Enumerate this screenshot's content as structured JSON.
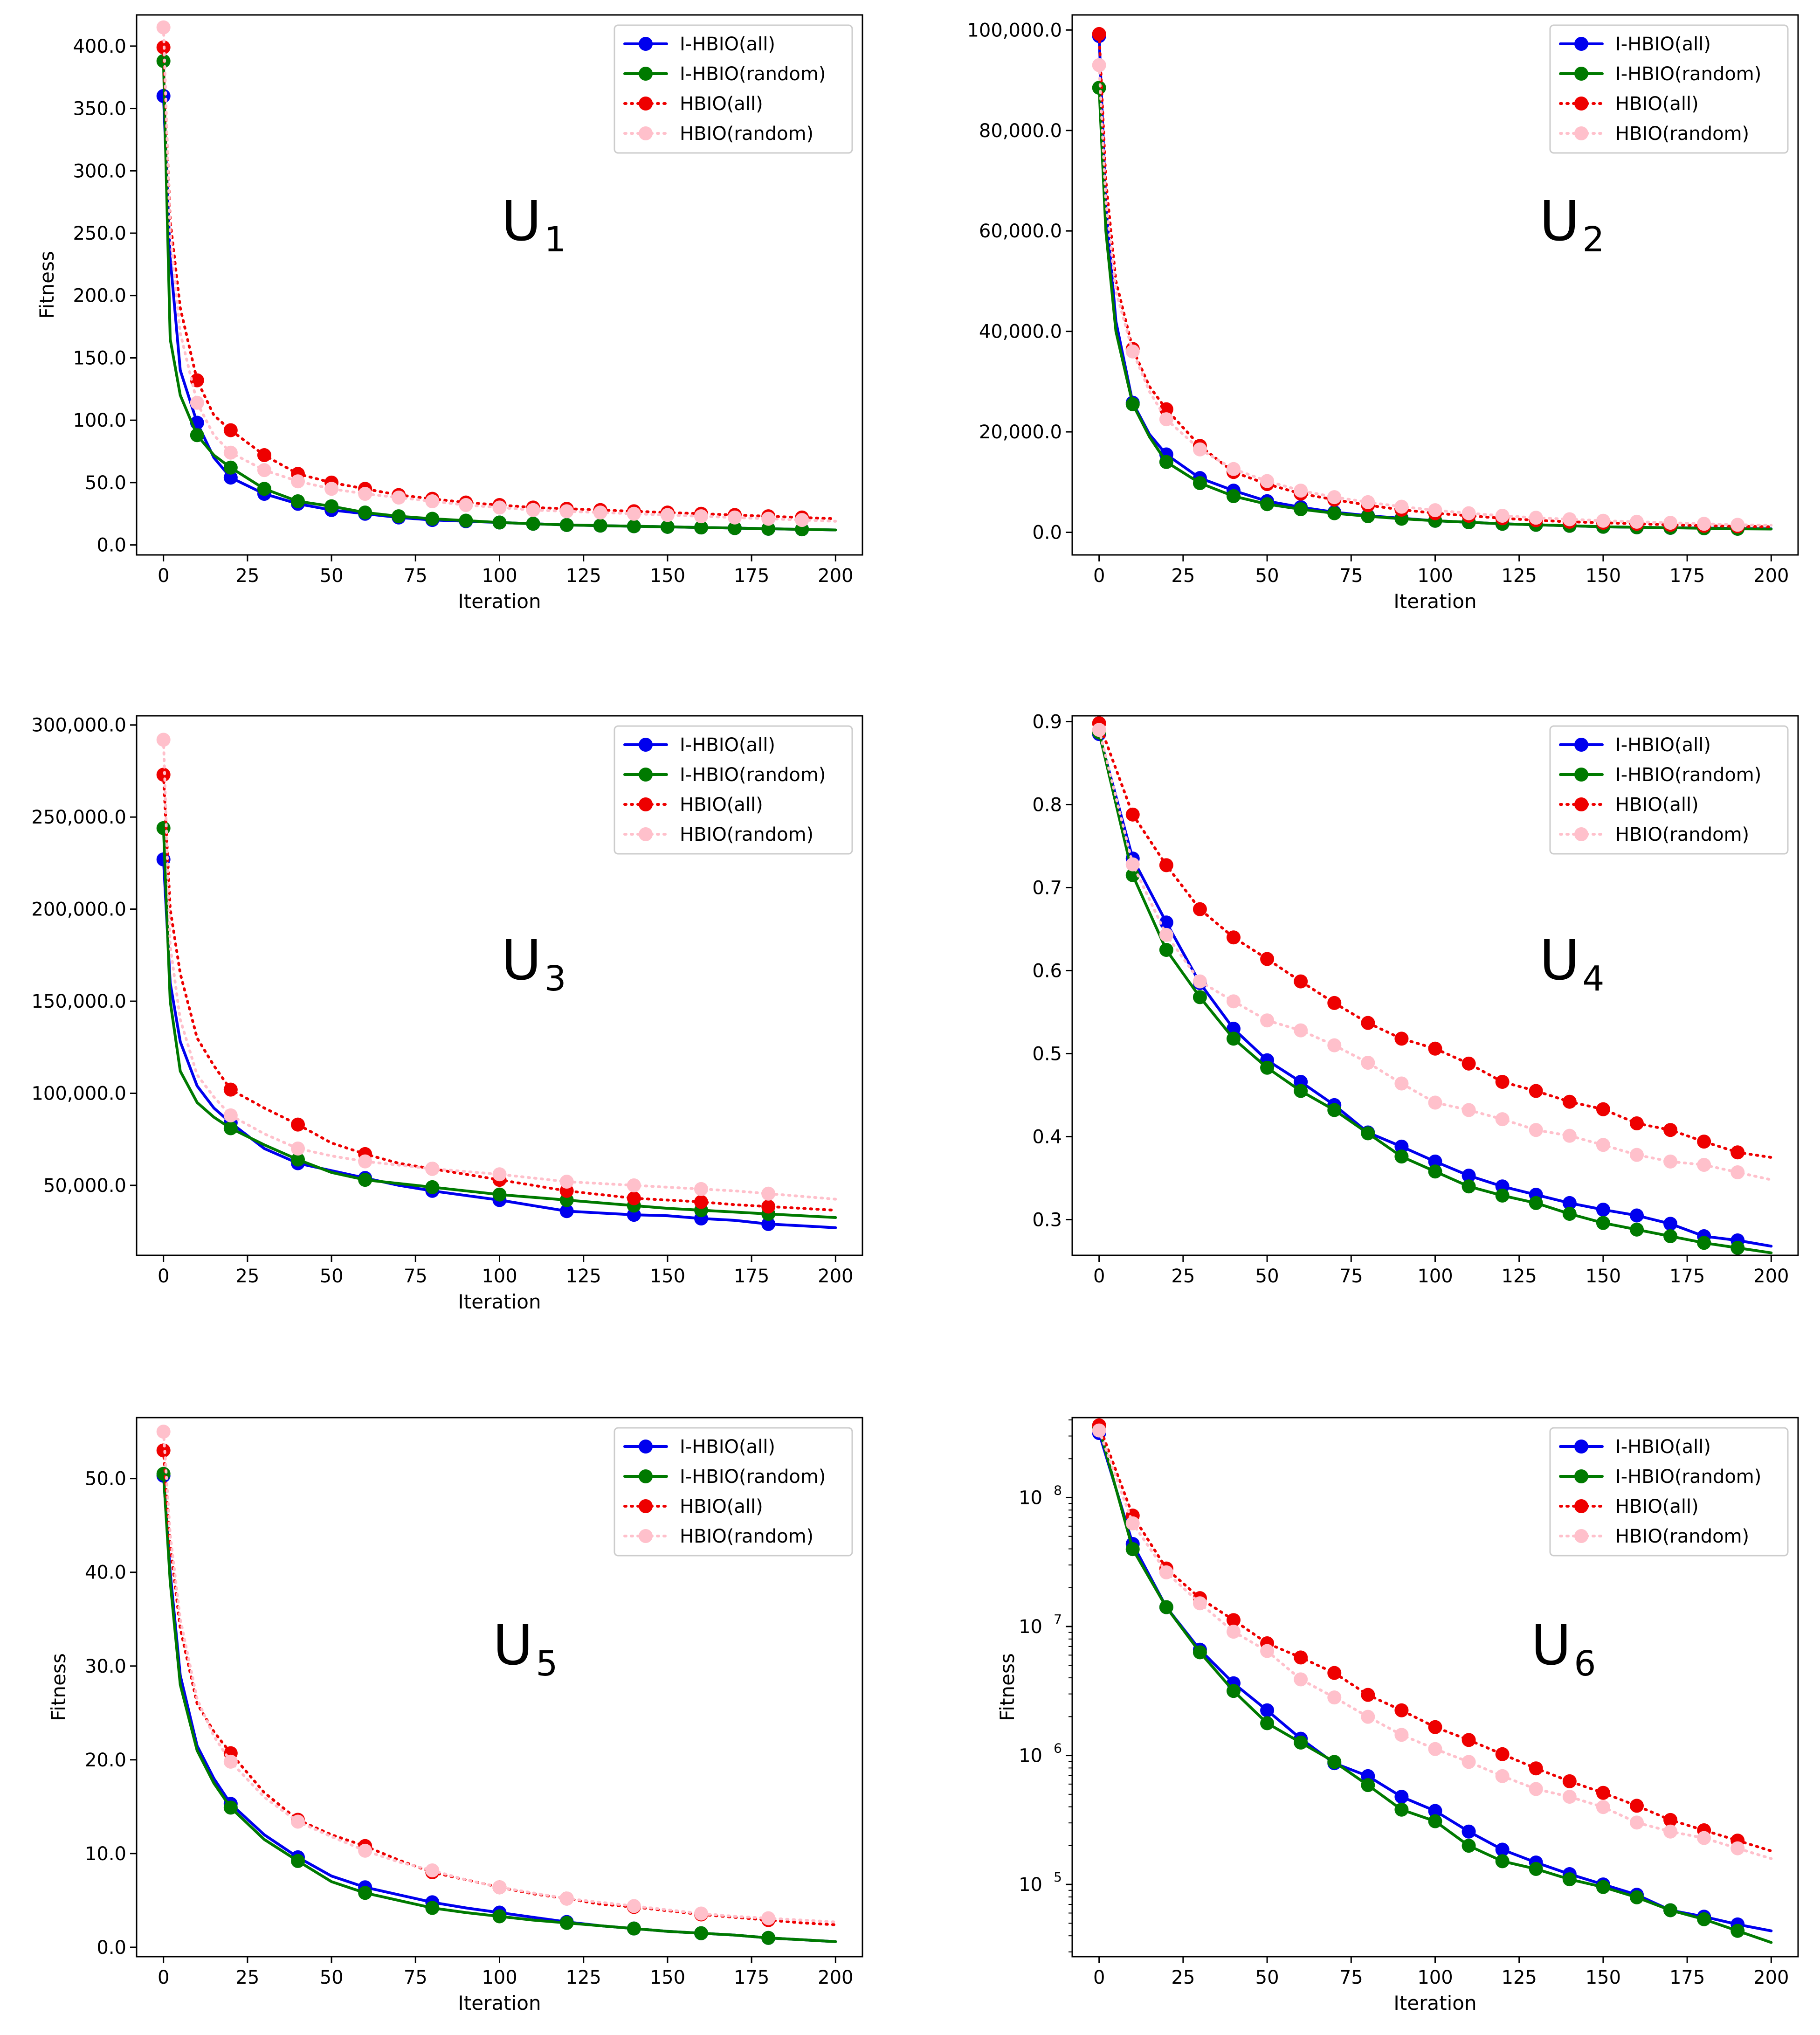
{
  "figure": {
    "type": "multi-panel convergence plots"
  },
  "series_style": [
    {
      "name": "I-HBIO(all)",
      "color": "#0000ee",
      "dash": "solid"
    },
    {
      "name": "I-HBIO(random)",
      "color": "#007a00",
      "dash": "solid"
    },
    {
      "name": "HBIO(all)",
      "color": "#ee0000",
      "dash": "dotted"
    },
    {
      "name": "HBIO(random)",
      "color": "#ffc0cb",
      "dash": "dotted"
    }
  ],
  "chart_data": [
    {
      "id": "u1",
      "type": "line",
      "panel_label": "U",
      "panel_sub": "1",
      "xlabel": "Iteration",
      "ylabel": "Fitness",
      "yscale": "linear",
      "xlim": [
        -8,
        208
      ],
      "ylim": [
        -8,
        425
      ],
      "xticks": [
        0,
        25,
        50,
        75,
        100,
        125,
        150,
        175,
        200
      ],
      "yticks": [
        0,
        50,
        100,
        150,
        200,
        250,
        300,
        350,
        400
      ],
      "ytick_labels": [
        "0.0",
        "50.0",
        "100.0",
        "150.0",
        "200.0",
        "250.0",
        "300.0",
        "350.0",
        "400.0"
      ],
      "x": [
        0,
        2,
        5,
        10,
        15,
        20,
        30,
        40,
        50,
        60,
        70,
        80,
        90,
        100,
        110,
        120,
        130,
        140,
        150,
        160,
        170,
        180,
        190,
        200
      ],
      "series": [
        {
          "name": "I-HBIO(all)",
          "marker_every": 10,
          "values": [
            360,
            230,
            140,
            98,
            70,
            54,
            41,
            33,
            28,
            25,
            22,
            20,
            19,
            18,
            17,
            16,
            15.5,
            15,
            14.5,
            14,
            13.5,
            13,
            12.5,
            12
          ]
        },
        {
          "name": "I-HBIO(random)",
          "marker_every": 10,
          "values": [
            388,
            165,
            120,
            88,
            72,
            62,
            45,
            35,
            31,
            26,
            23,
            21,
            19.5,
            18,
            17,
            16,
            15.5,
            15,
            14.5,
            14,
            13.5,
            13,
            12.5,
            12
          ]
        },
        {
          "name": "HBIO(all)",
          "marker_every": 10,
          "values": [
            399,
            260,
            190,
            132,
            104,
            92,
            72,
            57,
            50,
            45,
            40,
            37,
            34,
            32,
            30,
            29,
            28,
            27,
            26,
            25,
            24,
            23,
            22,
            21
          ]
        },
        {
          "name": "HBIO(random)",
          "marker_every": 10,
          "values": [
            415,
            250,
            170,
            114,
            88,
            74,
            60,
            51,
            45,
            41,
            38,
            35,
            32,
            30,
            28,
            27,
            26,
            25,
            24,
            23,
            22,
            21,
            20,
            19
          ]
        }
      ],
      "legend_loc": "upper right"
    },
    {
      "id": "u2",
      "type": "line",
      "panel_label": "U",
      "panel_sub": "2",
      "xlabel": "Iteration",
      "ylabel": "",
      "yscale": "linear",
      "xlim": [
        -8,
        208
      ],
      "ylim": [
        -4500,
        103000
      ],
      "xticks": [
        0,
        25,
        50,
        75,
        100,
        125,
        150,
        175,
        200
      ],
      "yticks": [
        0,
        20000,
        40000,
        60000,
        80000,
        100000
      ],
      "ytick_labels": [
        "0.0",
        "20,000.0",
        "40,000.0",
        "60,000.0",
        "80,000.0",
        "100,000.0"
      ],
      "x": [
        0,
        2,
        5,
        10,
        15,
        20,
        30,
        40,
        50,
        60,
        70,
        80,
        90,
        100,
        110,
        120,
        130,
        140,
        150,
        160,
        170,
        180,
        190,
        200
      ],
      "series": [
        {
          "name": "I-HBIO(all)",
          "marker_every": 10,
          "values": [
            98800,
            65000,
            42000,
            25800,
            19500,
            15500,
            10800,
            8300,
            6200,
            5000,
            4000,
            3300,
            2800,
            2300,
            2000,
            1700,
            1500,
            1300,
            1100,
            1000,
            900,
            850,
            750,
            700
          ]
        },
        {
          "name": "I-HBIO(random)",
          "marker_every": 10,
          "values": [
            88500,
            60000,
            40000,
            25500,
            19000,
            14000,
            9800,
            7200,
            5600,
            4600,
            3800,
            3200,
            2700,
            2300,
            2000,
            1700,
            1500,
            1300,
            1100,
            1000,
            900,
            800,
            700,
            650
          ]
        },
        {
          "name": "HBIO(all)",
          "marker_every": 10,
          "values": [
            99200,
            70000,
            50000,
            36500,
            29000,
            24500,
            17200,
            12000,
            9600,
            7700,
            6500,
            5400,
            4500,
            3800,
            3300,
            2800,
            2400,
            2100,
            1900,
            1700,
            1500,
            1300,
            1200,
            1100
          ]
        },
        {
          "name": "HBIO(random)",
          "marker_every": 10,
          "values": [
            93000,
            66000,
            48000,
            36000,
            28000,
            22500,
            16500,
            12600,
            10200,
            8300,
            7000,
            6000,
            5100,
            4400,
            3800,
            3300,
            2900,
            2600,
            2300,
            2100,
            1900,
            1700,
            1500,
            1400
          ]
        }
      ],
      "legend_loc": "upper right"
    },
    {
      "id": "u3",
      "type": "line",
      "panel_label": "U",
      "panel_sub": "3",
      "xlabel": "Iteration",
      "ylabel": "",
      "yscale": "linear",
      "xlim": [
        -8,
        208
      ],
      "ylim": [
        12000,
        305000
      ],
      "xticks": [
        0,
        25,
        50,
        75,
        100,
        125,
        150,
        175,
        200
      ],
      "yticks": [
        50000,
        100000,
        150000,
        200000,
        250000,
        300000
      ],
      "ytick_labels": [
        "50,000.0",
        "100,000.0",
        "150,000.0",
        "200,000.0",
        "250,000.0",
        "300,000.0"
      ],
      "x": [
        0,
        2,
        5,
        10,
        15,
        20,
        30,
        40,
        50,
        60,
        70,
        80,
        90,
        100,
        110,
        120,
        130,
        140,
        150,
        160,
        170,
        180,
        190,
        200
      ],
      "series": [
        {
          "name": "I-HBIO(all)",
          "marker_every": 20,
          "values": [
            227000,
            160000,
            128000,
            104000,
            92000,
            84000,
            70000,
            62000,
            58000,
            54000,
            50000,
            47000,
            44500,
            42000,
            39000,
            36000,
            35000,
            34000,
            33500,
            32000,
            31000,
            29000,
            28000,
            27000
          ]
        },
        {
          "name": "I-HBIO(random)",
          "marker_every": 20,
          "values": [
            244000,
            150000,
            112000,
            95000,
            87000,
            81000,
            72000,
            64000,
            57000,
            53000,
            51000,
            49000,
            47000,
            45000,
            43500,
            42000,
            40500,
            39000,
            37500,
            36500,
            35500,
            34500,
            33500,
            32500
          ]
        },
        {
          "name": "HBIO(all)",
          "marker_every": 20,
          "values": [
            273000,
            200000,
            165000,
            130000,
            115000,
            102000,
            92000,
            83000,
            73000,
            67000,
            62000,
            59000,
            56000,
            53000,
            50000,
            47000,
            45000,
            43000,
            42000,
            41000,
            39500,
            38500,
            37500,
            36500
          ]
        },
        {
          "name": "HBIO(random)",
          "marker_every": 20,
          "values": [
            292000,
            180000,
            140000,
            110000,
            98000,
            88000,
            78000,
            70000,
            66000,
            63000,
            61000,
            59000,
            57500,
            56000,
            54000,
            52000,
            51000,
            50000,
            49000,
            48000,
            47000,
            45500,
            44000,
            42500
          ]
        }
      ],
      "legend_loc": "upper right"
    },
    {
      "id": "u4",
      "type": "line",
      "panel_label": "U",
      "panel_sub": "4",
      "xlabel": "",
      "ylabel": "",
      "yscale": "linear",
      "xlim": [
        -8,
        208
      ],
      "ylim": [
        0.257,
        0.907
      ],
      "xticks": [
        0,
        25,
        50,
        75,
        100,
        125,
        150,
        175,
        200
      ],
      "yticks": [
        0.3,
        0.4,
        0.5,
        0.6,
        0.7,
        0.8,
        0.9
      ],
      "ytick_labels": [
        "0.3",
        "0.4",
        "0.5",
        "0.6",
        "0.7",
        "0.8",
        "0.9"
      ],
      "x": [
        0,
        10,
        20,
        30,
        40,
        50,
        60,
        70,
        80,
        90,
        100,
        110,
        120,
        130,
        140,
        150,
        160,
        170,
        180,
        190,
        200
      ],
      "series": [
        {
          "name": "I-HBIO(all)",
          "marker_every": 10,
          "values": [
            0.885,
            0.735,
            0.658,
            0.585,
            0.53,
            0.492,
            0.466,
            0.438,
            0.405,
            0.388,
            0.37,
            0.353,
            0.34,
            0.33,
            0.32,
            0.312,
            0.305,
            0.295,
            0.28,
            0.275,
            0.268
          ]
        },
        {
          "name": "I-HBIO(random)",
          "marker_every": 10,
          "values": [
            0.887,
            0.715,
            0.625,
            0.568,
            0.518,
            0.483,
            0.455,
            0.432,
            0.404,
            0.376,
            0.358,
            0.34,
            0.329,
            0.32,
            0.307,
            0.296,
            0.288,
            0.28,
            0.272,
            0.266,
            0.26
          ]
        },
        {
          "name": "HBIO(all)",
          "marker_every": 10,
          "values": [
            0.898,
            0.788,
            0.727,
            0.674,
            0.64,
            0.614,
            0.587,
            0.561,
            0.537,
            0.518,
            0.506,
            0.488,
            0.466,
            0.455,
            0.442,
            0.433,
            0.416,
            0.408,
            0.394,
            0.381,
            0.375
          ]
        },
        {
          "name": "HBIO(random)",
          "marker_every": 10,
          "values": [
            0.89,
            0.728,
            0.643,
            0.587,
            0.563,
            0.54,
            0.528,
            0.51,
            0.489,
            0.464,
            0.441,
            0.432,
            0.421,
            0.408,
            0.401,
            0.39,
            0.378,
            0.37,
            0.366,
            0.357,
            0.348
          ]
        }
      ],
      "legend_loc": "upper right"
    },
    {
      "id": "u5",
      "type": "line",
      "panel_label": "U",
      "panel_sub": "5",
      "xlabel": "Iteration",
      "ylabel": "Fitness",
      "yscale": "linear",
      "xlim": [
        -8,
        208
      ],
      "ylim": [
        -1.0,
        56.5
      ],
      "xticks": [
        0,
        25,
        50,
        75,
        100,
        125,
        150,
        175,
        200
      ],
      "yticks": [
        0,
        10,
        20,
        30,
        40,
        50
      ],
      "ytick_labels": [
        "0.0",
        "10.0",
        "20.0",
        "30.0",
        "40.0",
        "50.0"
      ],
      "x": [
        0,
        2,
        5,
        10,
        15,
        20,
        30,
        40,
        50,
        60,
        70,
        80,
        90,
        100,
        110,
        120,
        130,
        140,
        150,
        160,
        170,
        180,
        190,
        200
      ],
      "series": [
        {
          "name": "I-HBIO(all)",
          "marker_every": 20,
          "values": [
            50.3,
            40,
            29,
            21.5,
            18,
            15.3,
            12,
            9.6,
            7.6,
            6.4,
            5.6,
            4.8,
            4.2,
            3.7,
            3.2,
            2.7,
            2.3,
            2.0,
            1.7,
            1.5,
            1.3,
            1.0,
            0.8,
            0.6
          ]
        },
        {
          "name": "I-HBIO(random)",
          "marker_every": 20,
          "values": [
            50.5,
            39,
            28,
            21,
            17.5,
            14.9,
            11.5,
            9.2,
            7,
            5.8,
            5,
            4.2,
            3.7,
            3.3,
            2.9,
            2.6,
            2.3,
            2.0,
            1.7,
            1.5,
            1.3,
            1.0,
            0.8,
            0.6
          ]
        },
        {
          "name": "HBIO(all)",
          "marker_every": 20,
          "values": [
            53,
            43,
            34,
            26,
            23,
            20.7,
            16.5,
            13.6,
            12,
            10.8,
            9.3,
            8,
            7.2,
            6.4,
            5.7,
            5.2,
            4.6,
            4.3,
            3.9,
            3.5,
            3.2,
            2.9,
            2.6,
            2.4
          ]
        },
        {
          "name": "HBIO(random)",
          "marker_every": 20,
          "values": [
            55,
            44,
            35,
            26.5,
            22.5,
            19.8,
            16,
            13.4,
            11.8,
            10.3,
            9.1,
            8.2,
            7.2,
            6.4,
            5.8,
            5.2,
            4.8,
            4.4,
            4,
            3.6,
            3.3,
            3.1,
            2.9,
            2.7
          ]
        }
      ],
      "legend_loc": "upper right"
    },
    {
      "id": "u6",
      "type": "line",
      "panel_label": "U",
      "panel_sub": "6",
      "xlabel": "Iteration",
      "ylabel": "Fitness",
      "yscale": "log",
      "xlim": [
        -8,
        208
      ],
      "ylim_log10": [
        4.44,
        8.62
      ],
      "xticks": [
        0,
        25,
        50,
        75,
        100,
        125,
        150,
        175,
        200
      ],
      "yticks_log10": [
        5,
        6,
        7,
        8
      ],
      "ytick_base": "10",
      "ytick_exponents": [
        "5",
        "6",
        "7",
        "8"
      ],
      "x": [
        0,
        10,
        20,
        30,
        40,
        50,
        60,
        70,
        80,
        90,
        100,
        110,
        120,
        130,
        140,
        150,
        160,
        170,
        180,
        190,
        200
      ],
      "series": [
        {
          "name": "I-HBIO(all)",
          "marker_every": 10,
          "values_log10": [
            8.5,
            7.64,
            7.15,
            6.82,
            6.56,
            6.35,
            6.13,
            5.94,
            5.84,
            5.68,
            5.57,
            5.41,
            5.27,
            5.17,
            5.08,
            5.0,
            4.92,
            4.8,
            4.75,
            4.69,
            4.64
          ]
        },
        {
          "name": "I-HBIO(random)",
          "marker_every": 10,
          "values_log10": [
            8.54,
            7.6,
            7.15,
            6.8,
            6.5,
            6.25,
            6.1,
            5.95,
            5.77,
            5.58,
            5.49,
            5.3,
            5.18,
            5.12,
            5.04,
            4.98,
            4.9,
            4.8,
            4.73,
            4.64,
            4.55
          ]
        },
        {
          "name": "HBIO(all)",
          "marker_every": 10,
          "values_log10": [
            8.56,
            7.86,
            7.45,
            7.22,
            7.05,
            6.87,
            6.76,
            6.64,
            6.47,
            6.35,
            6.22,
            6.12,
            6.01,
            5.9,
            5.8,
            5.71,
            5.61,
            5.5,
            5.42,
            5.34,
            5.26
          ]
        },
        {
          "name": "HBIO(random)",
          "marker_every": 10,
          "values_log10": [
            8.52,
            7.8,
            7.42,
            7.18,
            6.96,
            6.81,
            6.59,
            6.45,
            6.3,
            6.16,
            6.05,
            5.95,
            5.84,
            5.74,
            5.68,
            5.6,
            5.48,
            5.41,
            5.36,
            5.28,
            5.2
          ]
        }
      ],
      "legend_loc": "upper right"
    }
  ]
}
